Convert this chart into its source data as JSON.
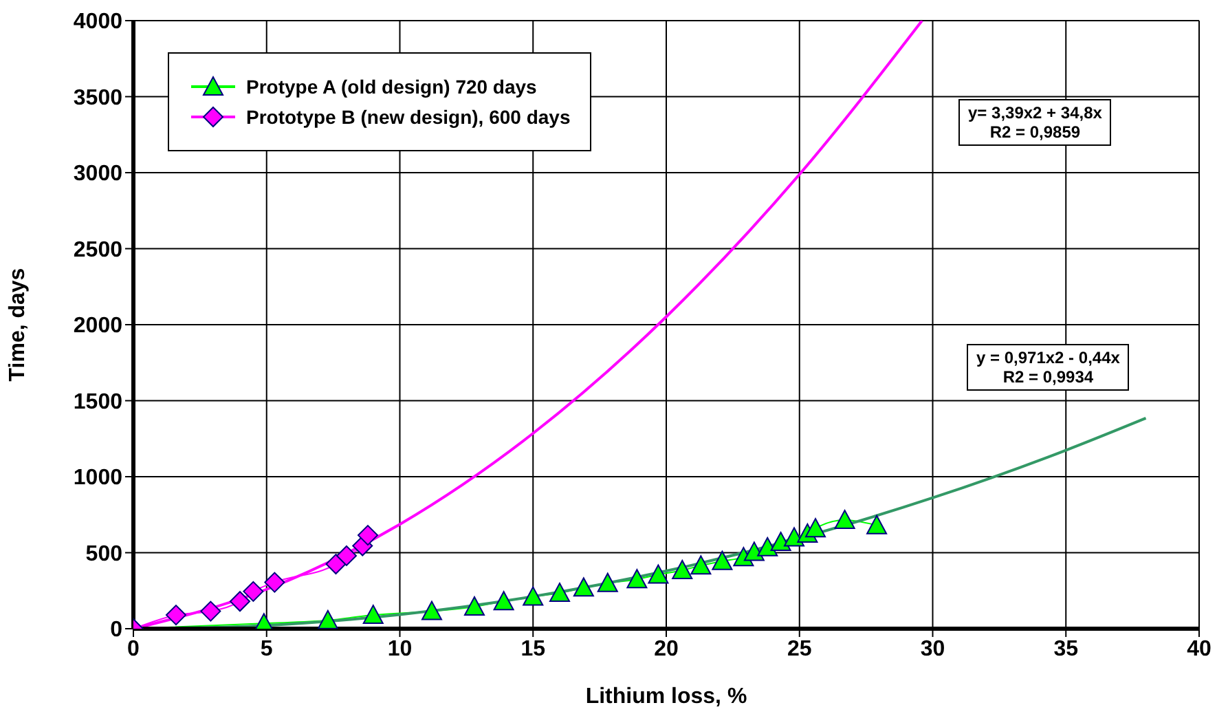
{
  "chart_data": {
    "type": "line",
    "xlabel": "Lithium loss, %",
    "ylabel": "Time, days",
    "xlim": [
      0,
      40
    ],
    "xticks": [
      0,
      5,
      10,
      15,
      20,
      25,
      30,
      35,
      40
    ],
    "ylim": [
      0,
      4000
    ],
    "yticks": [
      0,
      500,
      1000,
      1500,
      2000,
      2500,
      3000,
      3500,
      4000
    ],
    "grid": true,
    "legend": "top left",
    "line_style": "solid",
    "annotations": [
      "y= 3,39x2 + 34,8x\nR2 = 0,9859",
      "y = 0,971x2 - 0,44x\nR2 = 0,9934"
    ],
    "series": [
      {
        "name": "Protype A (old design) 720 days",
        "color": "#00ff00",
        "marker": "triangle",
        "x": [
          0,
          4.9,
          7.3,
          9.0,
          11.2,
          12.8,
          13.9,
          15.0,
          16.0,
          16.9,
          17.8,
          18.9,
          19.7,
          20.6,
          21.3,
          22.1,
          22.9,
          23.3,
          23.8,
          24.3,
          24.8,
          25.3,
          25.6,
          26.7,
          27.9
        ],
        "values": [
          0,
          35,
          55,
          90,
          115,
          145,
          180,
          210,
          235,
          270,
          300,
          325,
          355,
          385,
          415,
          445,
          470,
          505,
          535,
          570,
          600,
          625,
          660,
          715,
          680
        ]
      },
      {
        "name": "Prototype B (new design),  600 days",
        "color": "#ff00ff",
        "marker": "diamond",
        "x": [
          0,
          1.6,
          2.9,
          4.0,
          4.5,
          5.3,
          7.6,
          8.0,
          8.6,
          8.8
        ],
        "values": [
          0,
          90,
          115,
          180,
          245,
          305,
          425,
          480,
          545,
          615
        ]
      },
      {
        "color": "#ff00ff",
        "marker": "none",
        "x": [
          0,
          5,
          10,
          15,
          20,
          25,
          29.6
        ],
        "values": [
          0,
          259,
          687,
          1285,
          2052,
          2989,
          4000
        ]
      },
      {
        "color": "#339966",
        "marker": "none",
        "x": [
          0,
          5,
          10,
          15,
          20,
          25,
          30,
          35,
          38
        ],
        "values": [
          0,
          22,
          93,
          212,
          380,
          596,
          861,
          1174,
          1385
        ]
      }
    ]
  }
}
